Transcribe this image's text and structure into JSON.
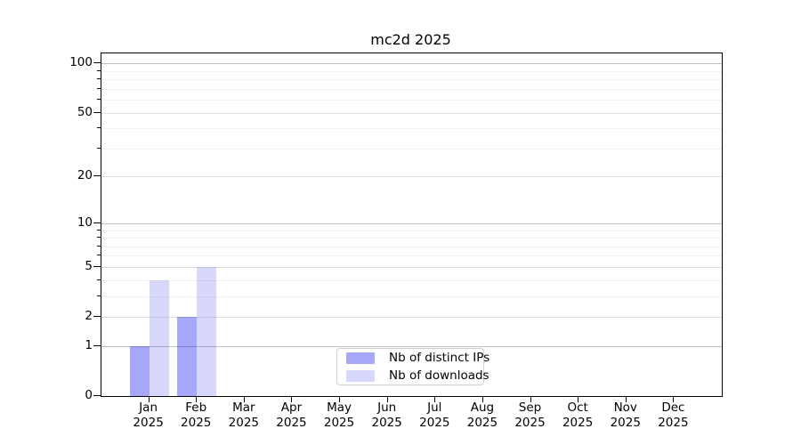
{
  "chart_data": {
    "type": "bar",
    "title": "mc2d 2025",
    "year": "2025",
    "categories": [
      "Jan",
      "Feb",
      "Mar",
      "Apr",
      "May",
      "Jun",
      "Jul",
      "Aug",
      "Sep",
      "Oct",
      "Nov",
      "Dec"
    ],
    "series": [
      {
        "name": "Nb of distinct IPs",
        "color": "rgba(10,10,235,0.36)",
        "values": [
          1,
          2,
          0,
          0,
          0,
          0,
          0,
          0,
          0,
          0,
          0,
          0
        ]
      },
      {
        "name": "Nb of downloads",
        "color": "rgba(10,10,235,0.16)",
        "values": [
          4,
          5,
          0,
          0,
          0,
          0,
          0,
          0,
          0,
          0,
          0,
          0
        ]
      }
    ],
    "y_axis": {
      "scale": "log10(1+x)",
      "major_ticks": [
        0,
        1,
        2,
        5,
        10,
        20,
        50,
        100
      ],
      "decade_ticks": [
        1,
        10,
        100
      ],
      "minor_ticks": [
        3,
        4,
        6,
        7,
        8,
        9,
        30,
        40,
        60,
        70,
        80,
        90
      ],
      "max_value": 115,
      "ylim": [
        0,
        115
      ]
    },
    "x_axis": {
      "tick_label_line2": "2025"
    },
    "grid": true,
    "legend_position": "inside-bottom-center",
    "colors": {
      "distinct_ips": "rgba(10,10,235,0.36)",
      "downloads": "rgba(10,10,235,0.16)",
      "axis": "#000000",
      "grid_decade": "#c0c0c0",
      "grid_major": "#e0e0e0",
      "grid_minor": "#f1f1f1"
    }
  }
}
